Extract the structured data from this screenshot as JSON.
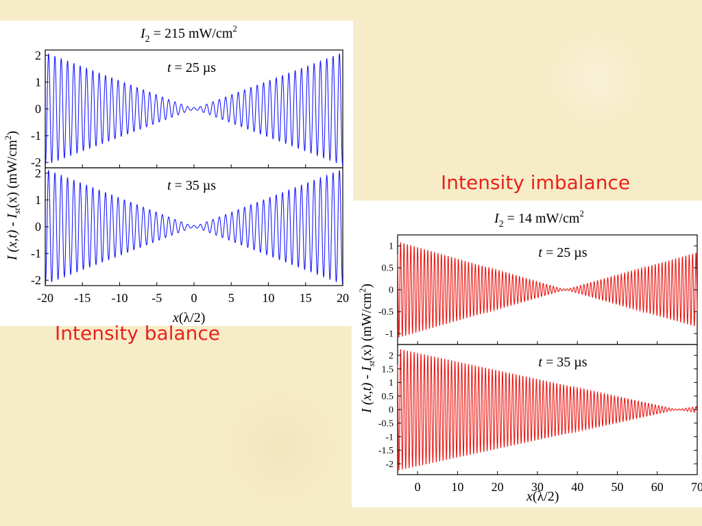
{
  "captions": {
    "left": "Intensity balance",
    "right": "Intensity imbalance"
  },
  "chart_data": [
    {
      "type": "line",
      "title_main": "I",
      "title_sub": "2",
      "title_rest": " = 215 mW/cm",
      "title_sup": "2",
      "xlabel_pre": "x",
      "xlabel_rest": "(λ/2)",
      "ylabel_pre": "I (x,t) - I",
      "ylabel_sub": "st",
      "ylabel_rest": "(x)   (mW/cm",
      "ylabel_sup": "2",
      "ylabel_end": ")",
      "color": "#1a1aff",
      "xlim": [
        -20,
        20
      ],
      "xticks": [
        "-20",
        "-15",
        "-10",
        "-5",
        "0",
        "5",
        "10",
        "15",
        "20"
      ],
      "panels": [
        {
          "label_t": "t",
          "label_rest": " = 25 µs",
          "ylim": [
            -2.2,
            2.2
          ],
          "yticks": [
            "2",
            "1",
            "0",
            "-1",
            "-2"
          ],
          "envelope": {
            "x0": 0,
            "edge_amplitude": 2.1,
            "floor": 0.05
          },
          "period": 0.85
        },
        {
          "label_t": "t",
          "label_rest": " = 35 µs",
          "ylim": [
            -2.2,
            2.2
          ],
          "yticks": [
            "2",
            "1",
            "0",
            "-1",
            "-2"
          ],
          "envelope": {
            "x0": 0,
            "edge_amplitude": 2.15,
            "floor": 0.05
          },
          "period": 0.85
        }
      ]
    },
    {
      "type": "line",
      "title_main": "I",
      "title_sub": "2",
      "title_rest": " = 14 mW/cm",
      "title_sup": "2",
      "xlabel_pre": "x",
      "xlabel_rest": "(λ/2)",
      "ylabel_pre": "I (x,t) - I",
      "ylabel_sub": "st",
      "ylabel_rest": "(x)  (mW/cm",
      "ylabel_sup": "2",
      "ylabel_end": ")",
      "color": "#e8140f",
      "xlim": [
        -5,
        70
      ],
      "xticks": [
        "0",
        "10",
        "20",
        "30",
        "40",
        "50",
        "60",
        "70"
      ],
      "panels": [
        {
          "label_t": "t",
          "label_rest": " = 25 µs",
          "ylim": [
            -1.25,
            1.25
          ],
          "yticks": [
            "1",
            "0.5",
            "0",
            "-0.5",
            "-1"
          ],
          "envelope": {
            "x0": 37,
            "left_amplitude": 1.1,
            "right_amplitude": 0.85,
            "floor": 0.02
          },
          "period": 0.85
        },
        {
          "label_t": "t",
          "label_rest": " = 35 µs",
          "ylim": [
            -2.4,
            2.4
          ],
          "yticks": [
            "2",
            "1.5",
            "1",
            "0.5",
            "0",
            "-0.5",
            "-1",
            "-1.5",
            "-2"
          ],
          "envelope": {
            "x0": 65,
            "left_amplitude": 2.25,
            "right_amplitude": 0.12,
            "floor": 0.02
          },
          "period": 0.85
        }
      ]
    }
  ]
}
